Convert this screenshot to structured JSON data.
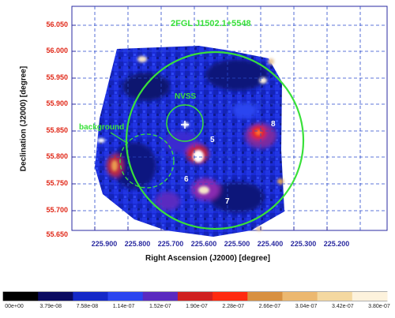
{
  "image": {
    "target": "2FGL J1502.1+5548",
    "labels": {
      "nvss": "NVSS",
      "background": "background",
      "source_5": "5",
      "source_6": "6",
      "source_7": "7",
      "source_8": "8"
    },
    "axes": {
      "xlabel": "Right Ascension (J2000) [degree]",
      "ylabel": "Declination (J2000) [degree]",
      "x_ticks": [
        "225.900",
        "225.800",
        "225.700",
        "225.600",
        "225.500",
        "225.400",
        "225.300",
        "225.200"
      ],
      "y_ticks": [
        "56.050",
        "56.000",
        "55.950",
        "55.900",
        "55.850",
        "55.800",
        "55.750",
        "55.700",
        "55.650"
      ]
    },
    "colorbar": {
      "ticks": [
        "00e+00",
        "3.79e-08",
        "7.58e-08",
        "1.14e-07",
        "1.52e-07",
        "1.90e-07",
        "2.28e-07",
        "2.66e-07",
        "3.04e-07",
        "3.42e-07",
        "3.80e-07"
      ],
      "colors": [
        "#000000",
        "#0a0a60",
        "#1428c8",
        "#2b45f0",
        "#5a2ac0",
        "#d02020",
        "#ff2a10",
        "#d89040",
        "#ecb870",
        "#f4d8a0",
        "#fdf2dc"
      ]
    },
    "overlay_color": "#39e03a",
    "tick_label_color": "#e02818"
  }
}
